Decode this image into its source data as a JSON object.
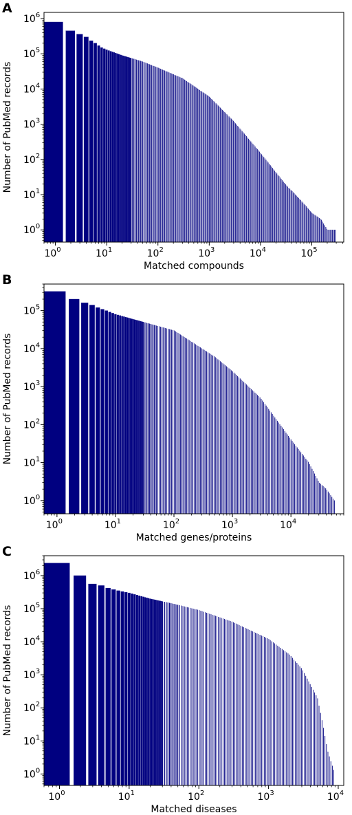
{
  "colors": {
    "bar": "#000080",
    "axis": "#000000",
    "background": "#ffffff"
  },
  "chart_data": [
    {
      "panel_label": "A",
      "type": "bar",
      "xscale": "log",
      "yscale": "log",
      "xlabel": "Matched compounds",
      "ylabel": "Number of PubMed records",
      "xlim": [
        0.6,
        420000
      ],
      "ylim": [
        0.45,
        1500000
      ],
      "xticks": [
        {
          "base": "10",
          "exp": "0",
          "value": 1
        },
        {
          "base": "10",
          "exp": "1",
          "value": 10
        },
        {
          "base": "10",
          "exp": "2",
          "value": 100
        },
        {
          "base": "10",
          "exp": "3",
          "value": 1000
        },
        {
          "base": "10",
          "exp": "4",
          "value": 10000
        },
        {
          "base": "10",
          "exp": "5",
          "value": 100000
        }
      ],
      "yticks": [
        {
          "base": "10",
          "exp": "0",
          "value": 1
        },
        {
          "base": "10",
          "exp": "1",
          "value": 10
        },
        {
          "base": "10",
          "exp": "2",
          "value": 100
        },
        {
          "base": "10",
          "exp": "3",
          "value": 1000
        },
        {
          "base": "10",
          "exp": "4",
          "value": 10000
        },
        {
          "base": "10",
          "exp": "5",
          "value": 100000
        },
        {
          "base": "10",
          "exp": "6",
          "value": 1000000
        }
      ],
      "grid": false,
      "bars": [
        {
          "x": 1,
          "y": 800000
        },
        {
          "x": 2,
          "y": 450000
        },
        {
          "x": 3,
          "y": 360000
        },
        {
          "x": 4,
          "y": 300000
        },
        {
          "x": 5,
          "y": 235000
        },
        {
          "x": 6,
          "y": 200000
        },
        {
          "x": 7,
          "y": 170000
        },
        {
          "x": 8,
          "y": 150000
        },
        {
          "x": 10,
          "y": 130000
        },
        {
          "x": 20,
          "y": 90000
        },
        {
          "x": 50,
          "y": 60000
        },
        {
          "x": 100,
          "y": 40000
        },
        {
          "x": 300,
          "y": 20000
        },
        {
          "x": 1000,
          "y": 6000
        },
        {
          "x": 3000,
          "y": 1200
        },
        {
          "x": 10000,
          "y": 150
        },
        {
          "x": 30000,
          "y": 20
        },
        {
          "x": 60000,
          "y": 7
        },
        {
          "x": 100000,
          "y": 3
        },
        {
          "x": 150000,
          "y": 2
        },
        {
          "x": 200000,
          "y": 1
        },
        {
          "x": 300000,
          "y": 1
        }
      ]
    },
    {
      "panel_label": "B",
      "type": "bar",
      "xscale": "log",
      "yscale": "log",
      "xlabel": "Matched genes/proteins",
      "ylabel": "Number of PubMed records",
      "xlim": [
        0.6,
        80000
      ],
      "ylim": [
        0.45,
        500000
      ],
      "xticks": [
        {
          "base": "10",
          "exp": "0",
          "value": 1
        },
        {
          "base": "10",
          "exp": "1",
          "value": 10
        },
        {
          "base": "10",
          "exp": "2",
          "value": 100
        },
        {
          "base": "10",
          "exp": "3",
          "value": 1000
        },
        {
          "base": "10",
          "exp": "4",
          "value": 10000
        }
      ],
      "yticks": [
        {
          "base": "10",
          "exp": "0",
          "value": 1
        },
        {
          "base": "10",
          "exp": "1",
          "value": 10
        },
        {
          "base": "10",
          "exp": "2",
          "value": 100
        },
        {
          "base": "10",
          "exp": "3",
          "value": 1000
        },
        {
          "base": "10",
          "exp": "4",
          "value": 10000
        },
        {
          "base": "10",
          "exp": "5",
          "value": 100000
        }
      ],
      "grid": false,
      "bars": [
        {
          "x": 1,
          "y": 320000
        },
        {
          "x": 2,
          "y": 200000
        },
        {
          "x": 3,
          "y": 160000
        },
        {
          "x": 4,
          "y": 140000
        },
        {
          "x": 5,
          "y": 120000
        },
        {
          "x": 7,
          "y": 100000
        },
        {
          "x": 10,
          "y": 80000
        },
        {
          "x": 30,
          "y": 50000
        },
        {
          "x": 50,
          "y": 40000
        },
        {
          "x": 100,
          "y": 30000
        },
        {
          "x": 200,
          "y": 15000
        },
        {
          "x": 500,
          "y": 6000
        },
        {
          "x": 1000,
          "y": 2500
        },
        {
          "x": 3000,
          "y": 500
        },
        {
          "x": 10000,
          "y": 40
        },
        {
          "x": 20000,
          "y": 10
        },
        {
          "x": 30000,
          "y": 3
        },
        {
          "x": 40000,
          "y": 2
        },
        {
          "x": 55000,
          "y": 1
        }
      ]
    },
    {
      "panel_label": "C",
      "type": "bar",
      "xscale": "log",
      "yscale": "log",
      "xlabel": "Matched diseases",
      "ylabel": "Number of PubMed records",
      "xlim": [
        0.6,
        12000
      ],
      "ylim": [
        0.45,
        4000000
      ],
      "xticks": [
        {
          "base": "10",
          "exp": "0",
          "value": 1
        },
        {
          "base": "10",
          "exp": "1",
          "value": 10
        },
        {
          "base": "10",
          "exp": "2",
          "value": 100
        },
        {
          "base": "10",
          "exp": "3",
          "value": 1000
        },
        {
          "base": "10",
          "exp": "4",
          "value": 10000
        }
      ],
      "yticks": [
        {
          "base": "10",
          "exp": "0",
          "value": 1
        },
        {
          "base": "10",
          "exp": "1",
          "value": 10
        },
        {
          "base": "10",
          "exp": "2",
          "value": 100
        },
        {
          "base": "10",
          "exp": "3",
          "value": 1000
        },
        {
          "base": "10",
          "exp": "4",
          "value": 10000
        },
        {
          "base": "10",
          "exp": "5",
          "value": 100000
        },
        {
          "base": "10",
          "exp": "6",
          "value": 1000000
        }
      ],
      "grid": false,
      "bars": [
        {
          "x": 1,
          "y": 2400000
        },
        {
          "x": 2,
          "y": 1000000
        },
        {
          "x": 3,
          "y": 560000
        },
        {
          "x": 4,
          "y": 500000
        },
        {
          "x": 5,
          "y": 420000
        },
        {
          "x": 7,
          "y": 350000
        },
        {
          "x": 10,
          "y": 300000
        },
        {
          "x": 20,
          "y": 200000
        },
        {
          "x": 50,
          "y": 130000
        },
        {
          "x": 100,
          "y": 90000
        },
        {
          "x": 300,
          "y": 40000
        },
        {
          "x": 1000,
          "y": 12000
        },
        {
          "x": 2000,
          "y": 4000
        },
        {
          "x": 3000,
          "y": 1500
        },
        {
          "x": 5000,
          "y": 200
        },
        {
          "x": 6000,
          "y": 30
        },
        {
          "x": 7000,
          "y": 5
        },
        {
          "x": 8000,
          "y": 2
        },
        {
          "x": 9000,
          "y": 1
        }
      ]
    }
  ]
}
